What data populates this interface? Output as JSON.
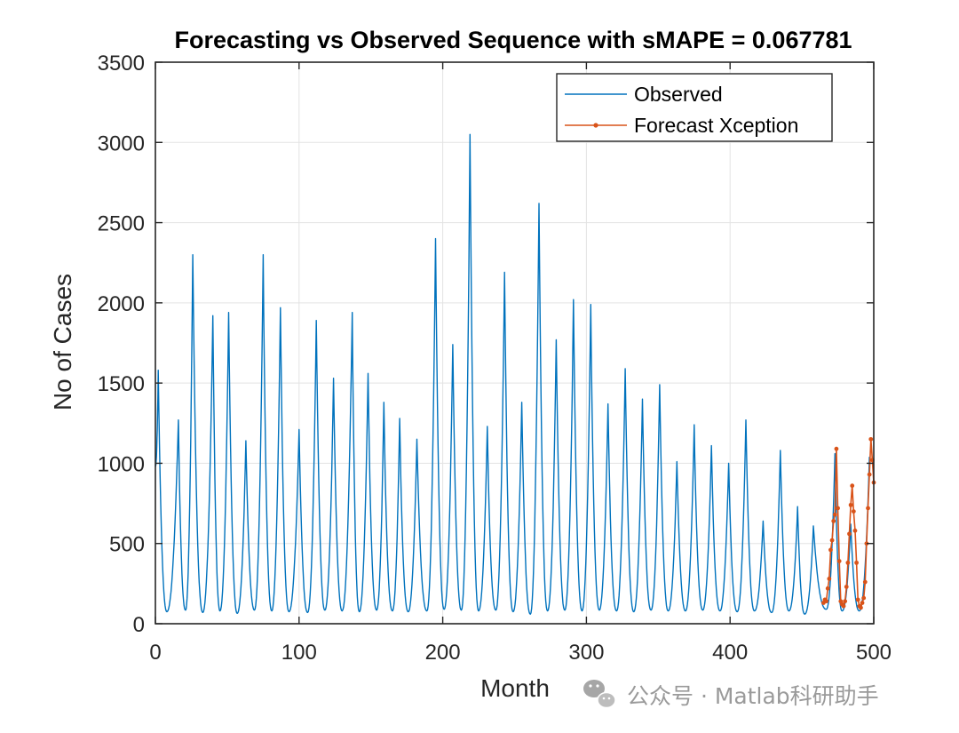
{
  "chart_data": {
    "type": "line",
    "title": "Forecasting vs Observed Sequence with sMAPE = 0.067781",
    "xlabel": "Month",
    "ylabel": "No of Cases",
    "xlim": [
      0,
      500
    ],
    "ylim": [
      0,
      3500
    ],
    "xticks": [
      "0",
      "100",
      "200",
      "300",
      "400",
      "500"
    ],
    "yticks": [
      "0",
      "500",
      "1000",
      "1500",
      "2000",
      "2500",
      "3000",
      "3500"
    ],
    "grid": true,
    "legend_position": "top-right",
    "series": [
      {
        "name": "Observed",
        "color": "#0072BD",
        "marker": "none",
        "peaks": [
          {
            "x": 2,
            "y": 1580
          },
          {
            "x": 16,
            "y": 1270
          },
          {
            "x": 26,
            "y": 2300
          },
          {
            "x": 40,
            "y": 1920
          },
          {
            "x": 51,
            "y": 1940
          },
          {
            "x": 63,
            "y": 1140
          },
          {
            "x": 75,
            "y": 2300
          },
          {
            "x": 87,
            "y": 1970
          },
          {
            "x": 100,
            "y": 1210
          },
          {
            "x": 112,
            "y": 1890
          },
          {
            "x": 124,
            "y": 1530
          },
          {
            "x": 137,
            "y": 1940
          },
          {
            "x": 148,
            "y": 1560
          },
          {
            "x": 159,
            "y": 1380
          },
          {
            "x": 170,
            "y": 1280
          },
          {
            "x": 182,
            "y": 1150
          },
          {
            "x": 195,
            "y": 2400
          },
          {
            "x": 207,
            "y": 1740
          },
          {
            "x": 219,
            "y": 3050
          },
          {
            "x": 231,
            "y": 1230
          },
          {
            "x": 243,
            "y": 2190
          },
          {
            "x": 255,
            "y": 1380
          },
          {
            "x": 267,
            "y": 2620
          },
          {
            "x": 279,
            "y": 1770
          },
          {
            "x": 291,
            "y": 2020
          },
          {
            "x": 303,
            "y": 1990
          },
          {
            "x": 315,
            "y": 1370
          },
          {
            "x": 327,
            "y": 1590
          },
          {
            "x": 339,
            "y": 1400
          },
          {
            "x": 351,
            "y": 1490
          },
          {
            "x": 363,
            "y": 1010
          },
          {
            "x": 375,
            "y": 1240
          },
          {
            "x": 387,
            "y": 1110
          },
          {
            "x": 399,
            "y": 1000
          },
          {
            "x": 411,
            "y": 1270
          },
          {
            "x": 423,
            "y": 640
          },
          {
            "x": 435,
            "y": 1080
          },
          {
            "x": 447,
            "y": 730
          },
          {
            "x": 458,
            "y": 610
          },
          {
            "x": 473,
            "y": 1060
          },
          {
            "x": 484,
            "y": 620
          },
          {
            "x": 497,
            "y": 1040
          }
        ],
        "troughs": [
          {
            "x": 8,
            "y": 75
          },
          {
            "x": 21,
            "y": 85
          },
          {
            "x": 33,
            "y": 70
          },
          {
            "x": 45,
            "y": 80
          },
          {
            "x": 57,
            "y": 65
          },
          {
            "x": 69,
            "y": 85
          },
          {
            "x": 81,
            "y": 80
          },
          {
            "x": 93,
            "y": 75
          },
          {
            "x": 106,
            "y": 70
          },
          {
            "x": 118,
            "y": 85
          },
          {
            "x": 130,
            "y": 80
          },
          {
            "x": 142,
            "y": 75
          },
          {
            "x": 154,
            "y": 85
          },
          {
            "x": 165,
            "y": 80
          },
          {
            "x": 176,
            "y": 75
          },
          {
            "x": 189,
            "y": 80
          },
          {
            "x": 201,
            "y": 90
          },
          {
            "x": 213,
            "y": 85
          },
          {
            "x": 225,
            "y": 80
          },
          {
            "x": 237,
            "y": 85
          },
          {
            "x": 249,
            "y": 75
          },
          {
            "x": 261,
            "y": 60
          },
          {
            "x": 273,
            "y": 80
          },
          {
            "x": 285,
            "y": 85
          },
          {
            "x": 297,
            "y": 80
          },
          {
            "x": 309,
            "y": 85
          },
          {
            "x": 321,
            "y": 80
          },
          {
            "x": 333,
            "y": 75
          },
          {
            "x": 345,
            "y": 85
          },
          {
            "x": 357,
            "y": 80
          },
          {
            "x": 369,
            "y": 80
          },
          {
            "x": 381,
            "y": 85
          },
          {
            "x": 393,
            "y": 80
          },
          {
            "x": 405,
            "y": 75
          },
          {
            "x": 417,
            "y": 80
          },
          {
            "x": 429,
            "y": 70
          },
          {
            "x": 441,
            "y": 80
          },
          {
            "x": 452,
            "y": 60
          },
          {
            "x": 467,
            "y": 90
          },
          {
            "x": 478,
            "y": 80
          },
          {
            "x": 490,
            "y": 80
          }
        ]
      },
      {
        "name": "Forecast Xception",
        "color": "#D95319",
        "marker": "dot",
        "x": [
          465,
          466,
          467,
          468,
          469,
          470,
          471,
          472,
          473,
          474,
          475,
          476,
          477,
          478,
          479,
          480,
          481,
          482,
          483,
          484,
          485,
          486,
          487,
          488,
          489,
          490,
          491,
          492,
          493,
          494,
          495,
          496,
          497,
          498,
          499,
          500
        ],
        "y": [
          130,
          150,
          140,
          220,
          280,
          460,
          520,
          640,
          680,
          1090,
          720,
          390,
          140,
          120,
          110,
          140,
          230,
          380,
          560,
          740,
          860,
          700,
          580,
          380,
          150,
          110,
          100,
          130,
          160,
          260,
          500,
          720,
          930,
          1150,
          1020,
          880
        ]
      }
    ]
  },
  "watermark": {
    "icon": "wechat-icon",
    "text": "公众号 · Matlab科研助手"
  }
}
